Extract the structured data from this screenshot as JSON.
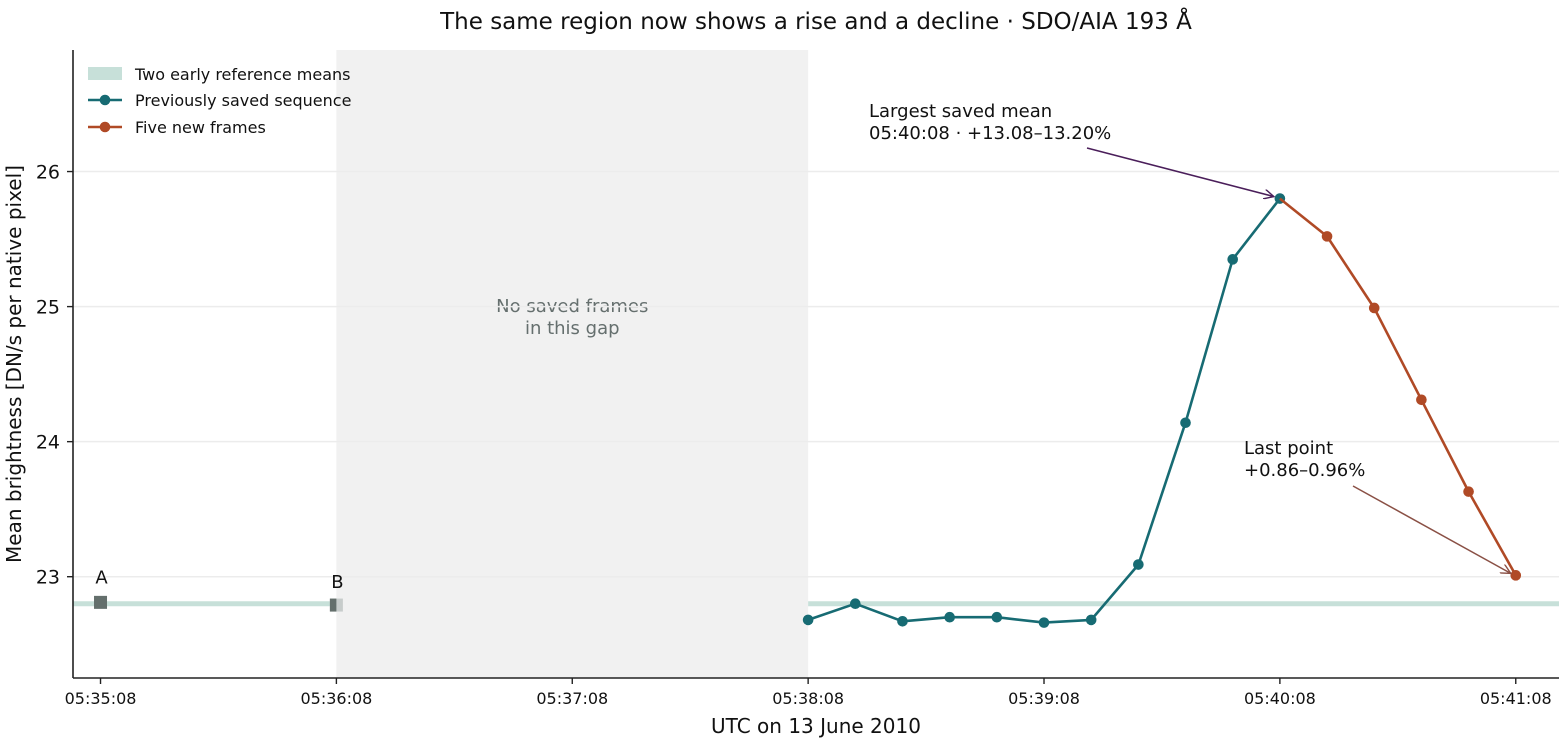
{
  "chart_data": {
    "type": "line",
    "title": "The same region now shows a rise and a decline · SDO/AIA 193 Å",
    "xlabel": "UTC on 13 June 2010",
    "ylabel": "Mean brightness [DN/s per native pixel]",
    "xlim": [
      "05:35:01",
      "05:41:19"
    ],
    "ylim": [
      22.25,
      26.9
    ],
    "x_ticks": [
      "05:35:08",
      "05:36:08",
      "05:37:08",
      "05:38:08",
      "05:39:08",
      "05:40:08",
      "05:41:08"
    ],
    "y_ticks": [
      23,
      24,
      25,
      26
    ],
    "grid": "horizontal",
    "legend_position": "top-left",
    "gap": {
      "start": "05:36:08",
      "end": "05:38:08",
      "label_line1": "No saved frames",
      "label_line2": "in this gap"
    },
    "reference": {
      "name": "Two early reference means",
      "level": 22.8,
      "points": [
        {
          "label": "A",
          "time": "05:35:08",
          "value": 22.81
        },
        {
          "label": "B",
          "time": "05:36:08",
          "value": 22.79
        }
      ]
    },
    "series": [
      {
        "name": "Previously saved sequence",
        "color": "#176b73",
        "points": [
          {
            "time": "05:38:08",
            "value": 22.68
          },
          {
            "time": "05:38:20",
            "value": 22.8
          },
          {
            "time": "05:38:32",
            "value": 22.67
          },
          {
            "time": "05:38:44",
            "value": 22.7
          },
          {
            "time": "05:38:56",
            "value": 22.7
          },
          {
            "time": "05:39:08",
            "value": 22.66
          },
          {
            "time": "05:39:20",
            "value": 22.68
          },
          {
            "time": "05:39:32",
            "value": 23.09
          },
          {
            "time": "05:39:44",
            "value": 24.14
          },
          {
            "time": "05:39:56",
            "value": 25.35
          },
          {
            "time": "05:40:08",
            "value": 25.8
          }
        ]
      },
      {
        "name": "Five new frames",
        "color": "#b04a26",
        "points": [
          {
            "time": "05:40:08",
            "value": 25.8
          },
          {
            "time": "05:40:20",
            "value": 25.52
          },
          {
            "time": "05:40:32",
            "value": 24.99
          },
          {
            "time": "05:40:44",
            "value": 24.31
          },
          {
            "time": "05:40:56",
            "value": 23.63
          },
          {
            "time": "05:41:08",
            "value": 23.01
          }
        ]
      }
    ],
    "annotations": [
      {
        "id": "peak",
        "line1": "Largest saved mean",
        "line2": "05:40:08 · +13.08–13.20%",
        "target_time": "05:40:08",
        "target_value": 25.8,
        "arrow_color": "#4a1e5a"
      },
      {
        "id": "last",
        "line1": "Last point",
        "line2": "+0.86–0.96%",
        "target_time": "05:41:08",
        "target_value": 23.01,
        "arrow_color": "#8a5045"
      }
    ],
    "colors": {
      "reference_band": "#c7e0d9",
      "reference_marker": "#646f6c",
      "gap_fill": "#f1f1f1",
      "gap_text": "#656f6e",
      "grid": "#ececec"
    }
  }
}
